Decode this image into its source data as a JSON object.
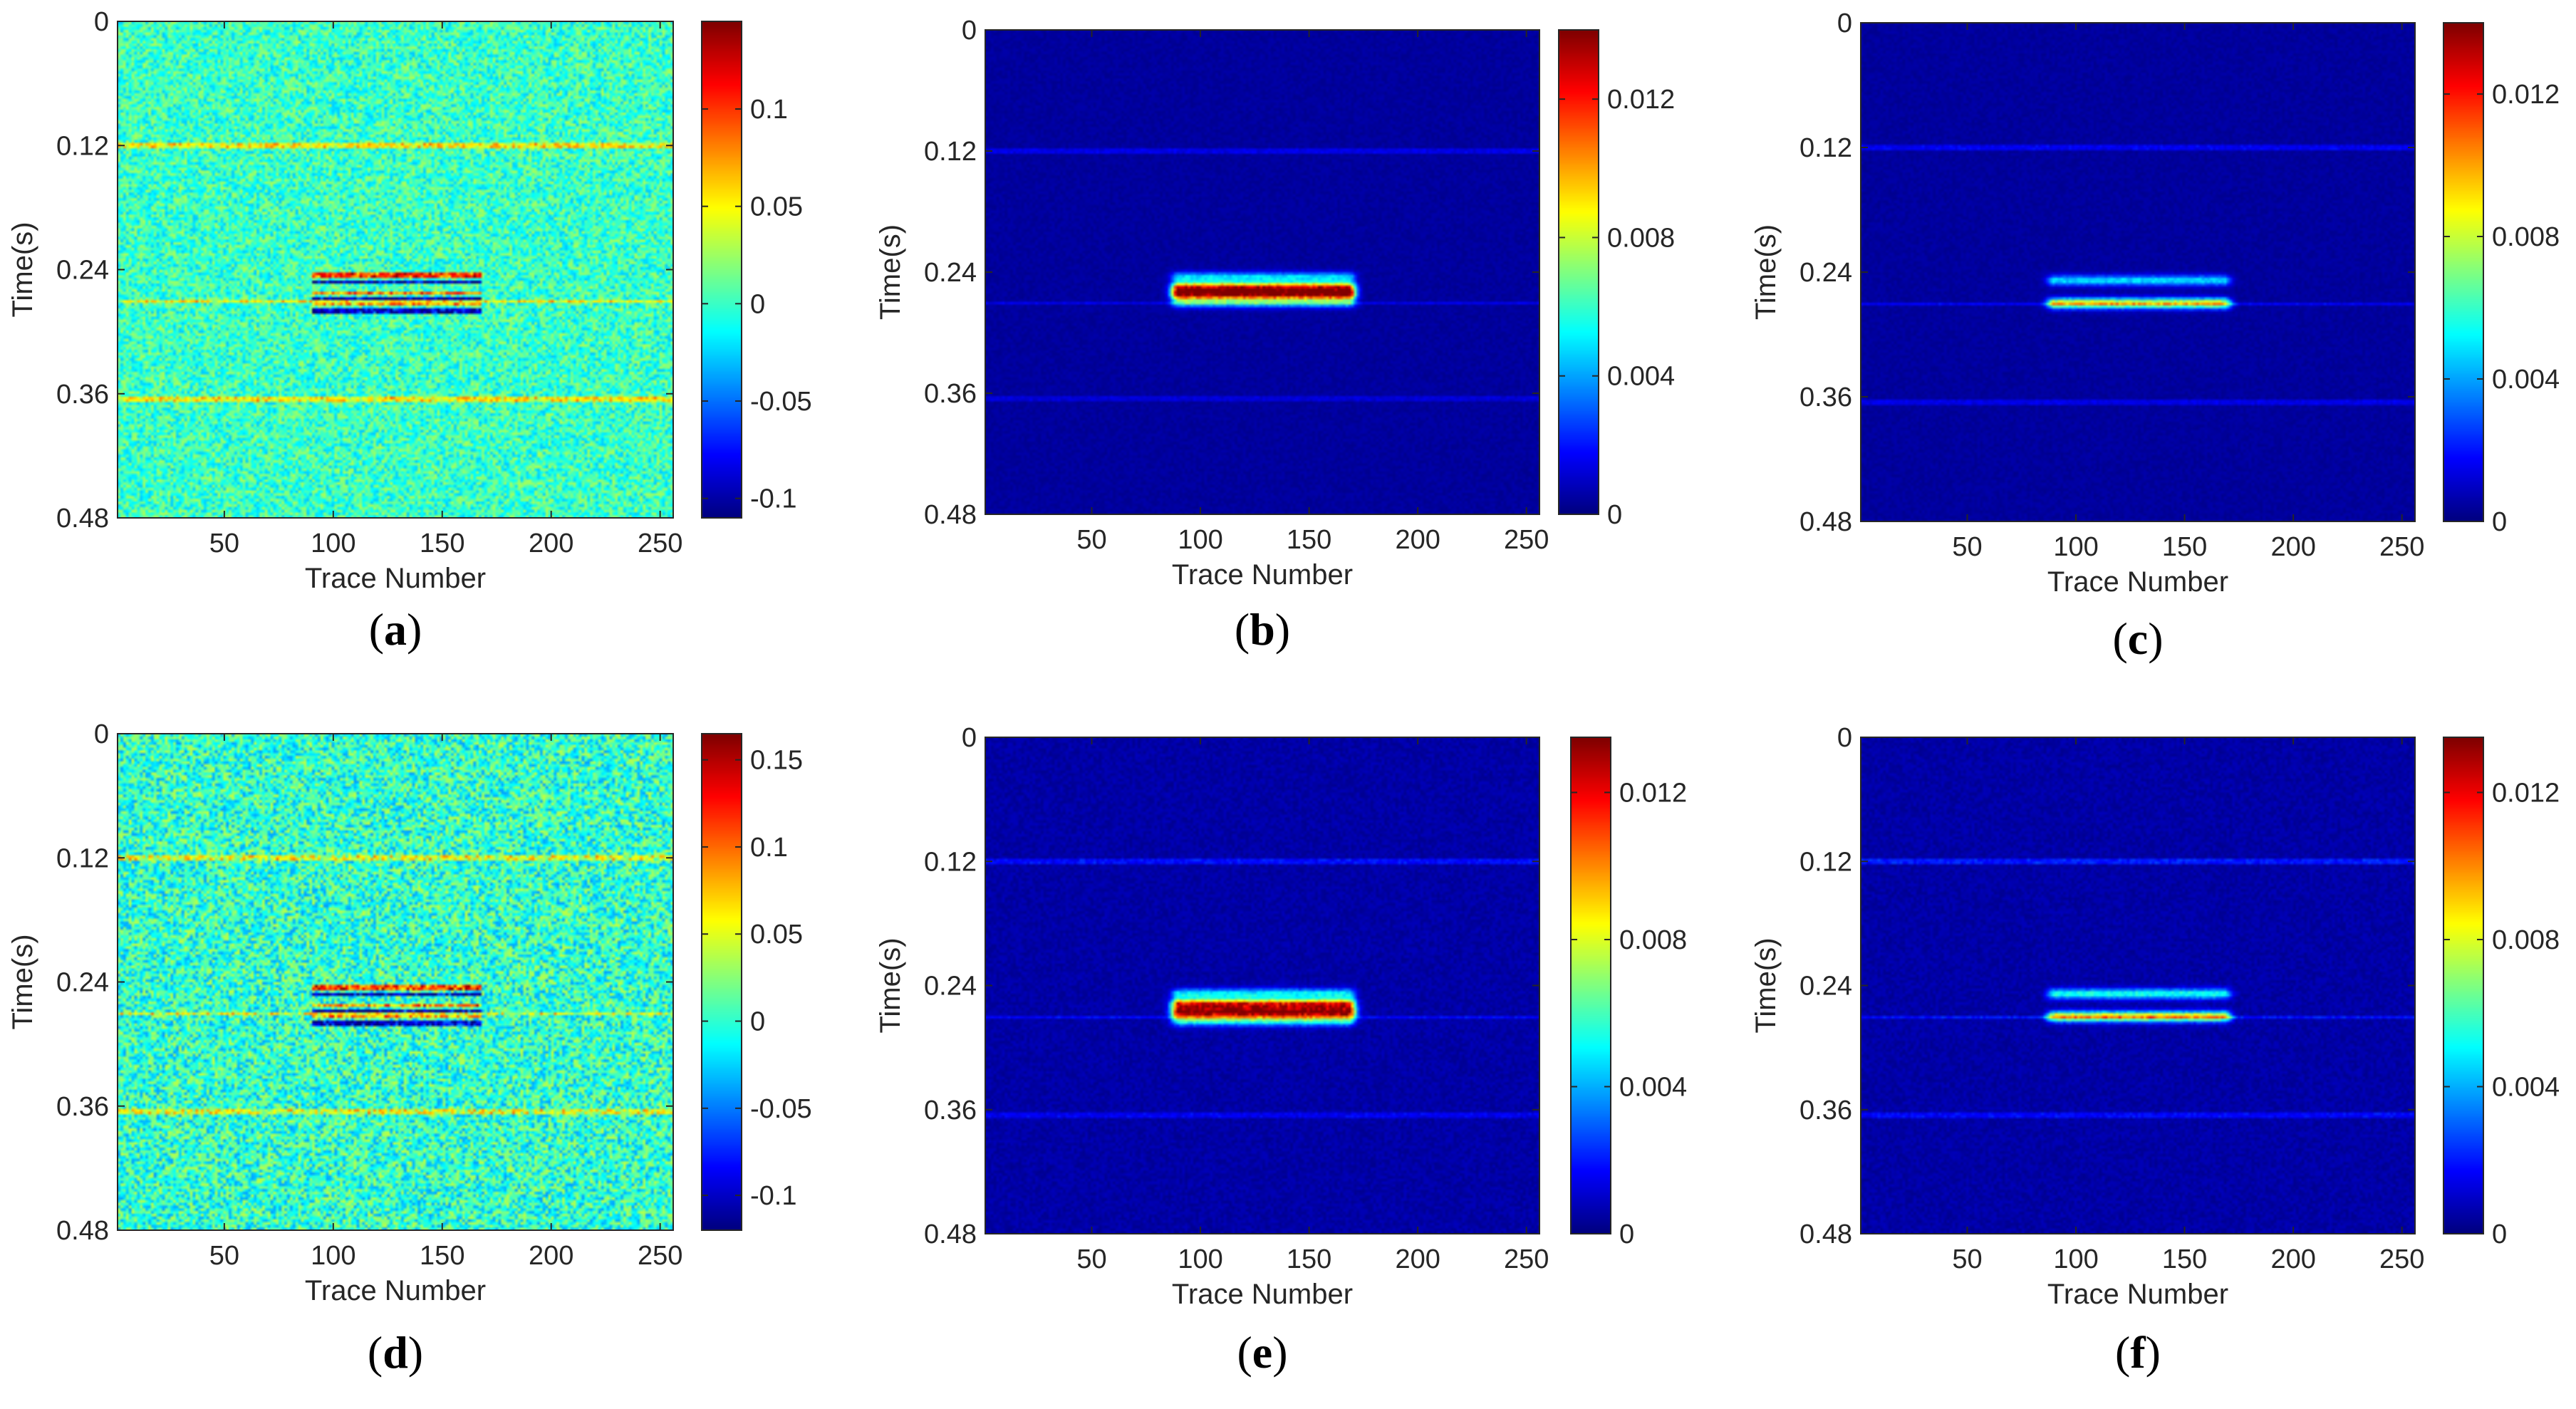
{
  "figure": {
    "panel_count": 6
  },
  "chart_data": [
    {
      "id": "a",
      "type": "heatmap",
      "panel_label": "a",
      "xlabel": "Trace Number",
      "ylabel": "Time(s)",
      "xticks": [
        50,
        100,
        150,
        200,
        250
      ],
      "xlim": [
        1,
        256
      ],
      "yticks": [
        0,
        0.12,
        0.24,
        0.36,
        0.48
      ],
      "ylim": [
        0,
        0.48
      ],
      "colorbar": {
        "ticks": [
          "0.1",
          "0.05",
          "0",
          "-0.05",
          "-0.1"
        ],
        "tick_values": [
          0.1,
          0.05,
          0,
          -0.05,
          -0.1
        ],
        "range": [
          -0.11,
          0.145
        ]
      },
      "background_value": 0,
      "noise": 0.028,
      "features": [
        {
          "kind": "line",
          "t": 0.12,
          "x": [
            1,
            256
          ],
          "value": 0.05
        },
        {
          "kind": "line",
          "t": 0.27,
          "x": [
            1,
            256
          ],
          "value": 0.05
        },
        {
          "kind": "line",
          "t": 0.365,
          "x": [
            1,
            256
          ],
          "value": 0.05
        },
        {
          "kind": "line",
          "t": 0.245,
          "x": [
            90,
            168
          ],
          "value": 0.1
        },
        {
          "kind": "line",
          "t": 0.252,
          "x": [
            90,
            168
          ],
          "value": -0.1
        },
        {
          "kind": "line",
          "t": 0.262,
          "x": [
            90,
            168
          ],
          "value": 0.08
        },
        {
          "kind": "line",
          "t": 0.268,
          "x": [
            90,
            168
          ],
          "value": -0.1
        },
        {
          "kind": "line",
          "t": 0.274,
          "x": [
            90,
            168
          ],
          "value": 0.07
        },
        {
          "kind": "line",
          "t": 0.28,
          "x": [
            90,
            168
          ],
          "value": -0.09
        }
      ]
    },
    {
      "id": "b",
      "type": "heatmap",
      "panel_label": "b",
      "xlabel": "Trace Number",
      "ylabel": "Time(s)",
      "xticks": [
        50,
        100,
        150,
        200,
        250
      ],
      "xlim": [
        1,
        256
      ],
      "yticks": [
        0,
        0.12,
        0.24,
        0.36,
        0.48
      ],
      "ylim": [
        0,
        0.48
      ],
      "colorbar": {
        "ticks": [
          "0.012",
          "0.008",
          "0.004",
          "0"
        ],
        "tick_values": [
          0.012,
          0.008,
          0.004,
          0
        ],
        "range": [
          0,
          0.014
        ]
      },
      "background_value": 0.0004,
      "noise": 0.0002,
      "features": [
        {
          "kind": "line",
          "t": 0.12,
          "x": [
            1,
            256
          ],
          "value": 0.001
        },
        {
          "kind": "line",
          "t": 0.27,
          "x": [
            1,
            256
          ],
          "value": 0.001
        },
        {
          "kind": "line",
          "t": 0.365,
          "x": [
            1,
            256
          ],
          "value": 0.0008
        },
        {
          "kind": "blob",
          "t": 0.245,
          "x": [
            90,
            168
          ],
          "value": 0.0045
        },
        {
          "kind": "blob",
          "t": 0.255,
          "x": [
            90,
            168
          ],
          "value": 0.011
        },
        {
          "kind": "blob",
          "t": 0.262,
          "x": [
            90,
            168
          ],
          "value": 0.0125
        },
        {
          "kind": "blob",
          "t": 0.27,
          "x": [
            90,
            168
          ],
          "value": 0.005
        }
      ]
    },
    {
      "id": "c",
      "type": "heatmap",
      "panel_label": "c",
      "xlabel": "Trace Number",
      "ylabel": "Time(s)",
      "xticks": [
        50,
        100,
        150,
        200,
        250
      ],
      "xlim": [
        1,
        256
      ],
      "yticks": [
        0,
        0.12,
        0.24,
        0.36,
        0.48
      ],
      "ylim": [
        0,
        0.48
      ],
      "colorbar": {
        "ticks": [
          "0.012",
          "0.008",
          "0.004",
          "0"
        ],
        "tick_values": [
          0.012,
          0.008,
          0.004,
          0
        ],
        "range": [
          0,
          0.014
        ]
      },
      "background_value": 0.0004,
      "noise": 0.0002,
      "features": [
        {
          "kind": "line",
          "t": 0.12,
          "x": [
            1,
            256
          ],
          "value": 0.0012
        },
        {
          "kind": "line",
          "t": 0.27,
          "x": [
            1,
            256
          ],
          "value": 0.0012
        },
        {
          "kind": "line",
          "t": 0.365,
          "x": [
            1,
            256
          ],
          "value": 0.001
        },
        {
          "kind": "blob",
          "t": 0.248,
          "x": [
            90,
            168
          ],
          "value": 0.0045
        },
        {
          "kind": "blob",
          "t": 0.27,
          "x": [
            90,
            168
          ],
          "value": 0.0085
        }
      ]
    },
    {
      "id": "d",
      "type": "heatmap",
      "panel_label": "d",
      "xlabel": "Trace Number",
      "ylabel": "Time(s)",
      "xticks": [
        50,
        100,
        150,
        200,
        250
      ],
      "xlim": [
        1,
        256
      ],
      "yticks": [
        0,
        0.12,
        0.24,
        0.36,
        0.48
      ],
      "ylim": [
        0,
        0.48
      ],
      "colorbar": {
        "ticks": [
          "0.15",
          "0.1",
          "0.05",
          "0",
          "-0.05",
          "-0.1"
        ],
        "tick_values": [
          0.15,
          0.1,
          0.05,
          0,
          -0.05,
          -0.1
        ],
        "range": [
          -0.12,
          0.165
        ]
      },
      "background_value": 0,
      "noise": 0.04,
      "features": [
        {
          "kind": "line",
          "t": 0.12,
          "x": [
            1,
            256
          ],
          "value": 0.05
        },
        {
          "kind": "line",
          "t": 0.27,
          "x": [
            1,
            256
          ],
          "value": 0.05
        },
        {
          "kind": "line",
          "t": 0.365,
          "x": [
            1,
            256
          ],
          "value": 0.05
        },
        {
          "kind": "line",
          "t": 0.245,
          "x": [
            90,
            168
          ],
          "value": 0.11
        },
        {
          "kind": "line",
          "t": 0.252,
          "x": [
            90,
            168
          ],
          "value": -0.11
        },
        {
          "kind": "line",
          "t": 0.262,
          "x": [
            90,
            168
          ],
          "value": 0.09
        },
        {
          "kind": "line",
          "t": 0.268,
          "x": [
            90,
            168
          ],
          "value": -0.11
        },
        {
          "kind": "line",
          "t": 0.274,
          "x": [
            90,
            168
          ],
          "value": 0.08
        },
        {
          "kind": "line",
          "t": 0.28,
          "x": [
            90,
            168
          ],
          "value": -0.1
        }
      ]
    },
    {
      "id": "e",
      "type": "heatmap",
      "panel_label": "e",
      "xlabel": "Trace Number",
      "ylabel": "Time(s)",
      "xticks": [
        50,
        100,
        150,
        200,
        250
      ],
      "xlim": [
        1,
        256
      ],
      "yticks": [
        0,
        0.12,
        0.24,
        0.36,
        0.48
      ],
      "ylim": [
        0,
        0.48
      ],
      "colorbar": {
        "ticks": [
          "0.012",
          "0.008",
          "0.004",
          "0"
        ],
        "tick_values": [
          0.012,
          0.008,
          0.004,
          0
        ],
        "range": [
          0,
          0.0135
        ]
      },
      "background_value": 0.0005,
      "noise": 0.0003,
      "features": [
        {
          "kind": "line",
          "t": 0.12,
          "x": [
            1,
            256
          ],
          "value": 0.0013
        },
        {
          "kind": "line",
          "t": 0.27,
          "x": [
            1,
            256
          ],
          "value": 0.0012
        },
        {
          "kind": "line",
          "t": 0.365,
          "x": [
            1,
            256
          ],
          "value": 0.001
        },
        {
          "kind": "blob",
          "t": 0.248,
          "x": [
            90,
            168
          ],
          "value": 0.0045
        },
        {
          "kind": "blob",
          "t": 0.258,
          "x": [
            90,
            168
          ],
          "value": 0.011
        },
        {
          "kind": "blob",
          "t": 0.266,
          "x": [
            90,
            168
          ],
          "value": 0.0125
        },
        {
          "kind": "blob",
          "t": 0.274,
          "x": [
            90,
            168
          ],
          "value": 0.005
        }
      ]
    },
    {
      "id": "f",
      "type": "heatmap",
      "panel_label": "f",
      "xlabel": "Trace Number",
      "ylabel": "Time(s)",
      "xticks": [
        50,
        100,
        150,
        200,
        250
      ],
      "xlim": [
        1,
        256
      ],
      "yticks": [
        0,
        0.12,
        0.24,
        0.36,
        0.48
      ],
      "ylim": [
        0,
        0.48
      ],
      "colorbar": {
        "ticks": [
          "0.012",
          "0.008",
          "0.004",
          "0"
        ],
        "tick_values": [
          0.012,
          0.008,
          0.004,
          0
        ],
        "range": [
          0,
          0.0135
        ]
      },
      "background_value": 0.0005,
      "noise": 0.0003,
      "features": [
        {
          "kind": "line",
          "t": 0.12,
          "x": [
            1,
            256
          ],
          "value": 0.0015
        },
        {
          "kind": "line",
          "t": 0.27,
          "x": [
            1,
            256
          ],
          "value": 0.0014
        },
        {
          "kind": "line",
          "t": 0.365,
          "x": [
            1,
            256
          ],
          "value": 0.0012
        },
        {
          "kind": "blob",
          "t": 0.248,
          "x": [
            90,
            168
          ],
          "value": 0.005
        },
        {
          "kind": "blob",
          "t": 0.27,
          "x": [
            90,
            168
          ],
          "value": 0.0085
        }
      ]
    }
  ]
}
